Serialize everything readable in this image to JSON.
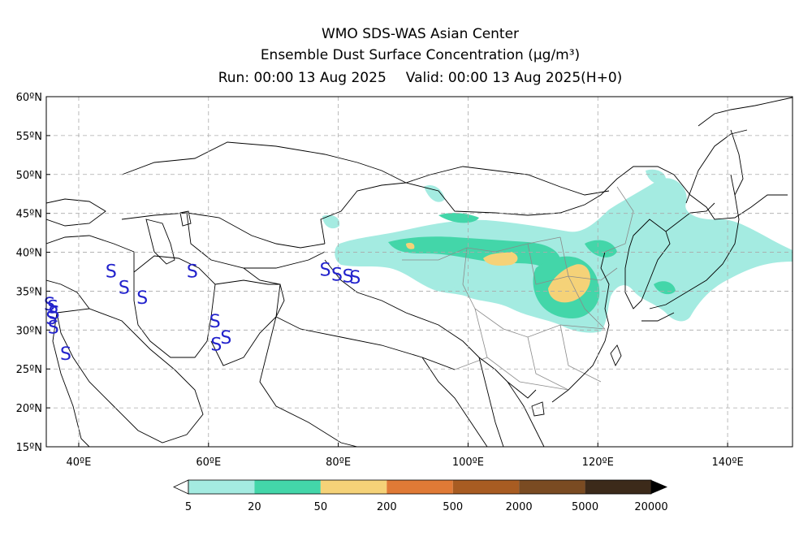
{
  "header": {
    "line1": "WMO SDS-WAS Asian Center",
    "line2": "Ensemble Dust Surface Concentration (μg/m³)",
    "run": "Run: 00:00 13 Aug 2025",
    "valid": "Valid: 00:00 13 Aug 2025(H+0)"
  },
  "map": {
    "lon_range": [
      35,
      150
    ],
    "lat_range": [
      15,
      60
    ],
    "lat_ticks": [
      "15ºN",
      "20ºN",
      "25ºN",
      "30ºN",
      "35ºN",
      "40ºN",
      "45ºN",
      "50ºN",
      "55ºN",
      "60ºN"
    ],
    "lon_ticks": [
      "40ºE",
      "60ºE",
      "80ºE",
      "100ºE",
      "120ºE",
      "140ºE"
    ],
    "grid": "dashed",
    "dust_storm_symbol": "S",
    "dust_storm_sites": [
      [
        35.5,
        33.4
      ],
      [
        36,
        33
      ],
      [
        36.2,
        32.3
      ],
      [
        35.8,
        31.6
      ],
      [
        36.1,
        30.4
      ],
      [
        38,
        27
      ],
      [
        45,
        37.6
      ],
      [
        47,
        35.5
      ],
      [
        49.8,
        34.2
      ],
      [
        57.5,
        37.6
      ],
      [
        61,
        31.2
      ],
      [
        61.2,
        28.2
      ],
      [
        62.7,
        29.1
      ],
      [
        78,
        37.8
      ],
      [
        79.8,
        37.2
      ],
      [
        81.5,
        37
      ],
      [
        82.6,
        36.8
      ]
    ]
  },
  "legend": {
    "levels": [
      "5",
      "20",
      "50",
      "200",
      "500",
      "2000",
      "5000",
      "20000"
    ],
    "colors": [
      "#a4ebe1",
      "#43d6a9",
      "#f5d278",
      "#e07a36",
      "#a85c22",
      "#7a4b22",
      "#3c2a1a"
    ]
  }
}
